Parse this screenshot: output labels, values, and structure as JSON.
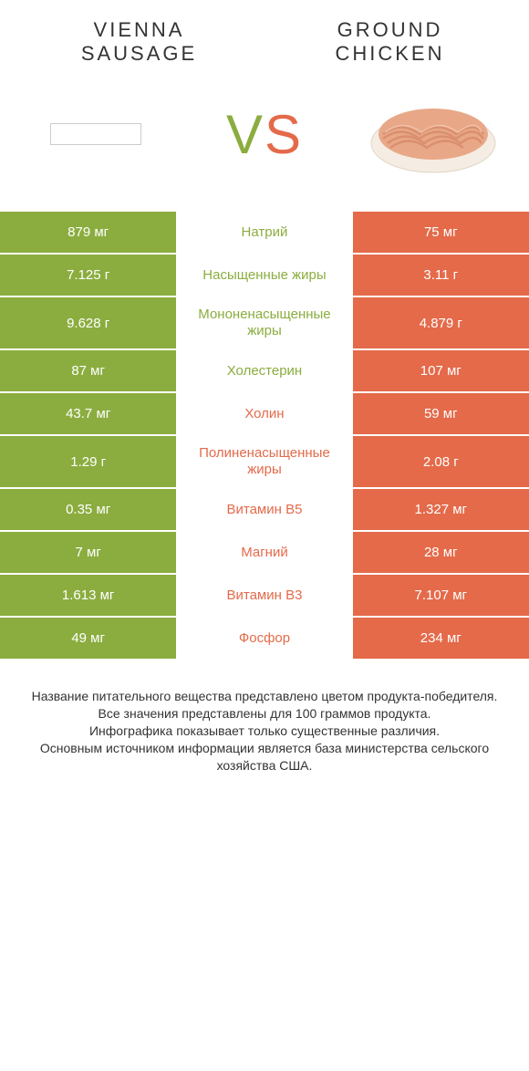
{
  "colors": {
    "left": "#8bad3f",
    "right": "#e46a4a",
    "bg": "#ffffff",
    "text": "#333333",
    "white": "#ffffff"
  },
  "header": {
    "leftTitle": "VIENNA SAUSAGE",
    "rightTitle": "GROUND CHICKEN",
    "vsV": "V",
    "vsS": "S"
  },
  "rows": [
    {
      "left": "879 мг",
      "mid": "Натрий",
      "right": "75 мг",
      "winner": "left"
    },
    {
      "left": "7.125 г",
      "mid": "Насыщенные жиры",
      "right": "3.11 г",
      "winner": "left"
    },
    {
      "left": "9.628 г",
      "mid": "Мононенасыщенные жиры",
      "right": "4.879 г",
      "winner": "left"
    },
    {
      "left": "87 мг",
      "mid": "Холестерин",
      "right": "107 мг",
      "winner": "left"
    },
    {
      "left": "43.7 мг",
      "mid": "Холин",
      "right": "59 мг",
      "winner": "right"
    },
    {
      "left": "1.29 г",
      "mid": "Полиненасыщенные жиры",
      "right": "2.08 г",
      "winner": "right"
    },
    {
      "left": "0.35 мг",
      "mid": "Витамин B5",
      "right": "1.327 мг",
      "winner": "right"
    },
    {
      "left": "7 мг",
      "mid": "Магний",
      "right": "28 мг",
      "winner": "right"
    },
    {
      "left": "1.613 мг",
      "mid": "Витамин B3",
      "right": "7.107 мг",
      "winner": "right"
    },
    {
      "left": "49 мг",
      "mid": "Фосфор",
      "right": "234 мг",
      "winner": "right"
    }
  ],
  "footer": {
    "line1": "Название питательного вещества представлено цветом продукта-победителя.",
    "line2": "Все значения представлены для 100 граммов продукта.",
    "line3": "Инфографика показывает только существенные различия.",
    "line4": "Основным источником информации является база министерства сельского хозяйства США."
  }
}
